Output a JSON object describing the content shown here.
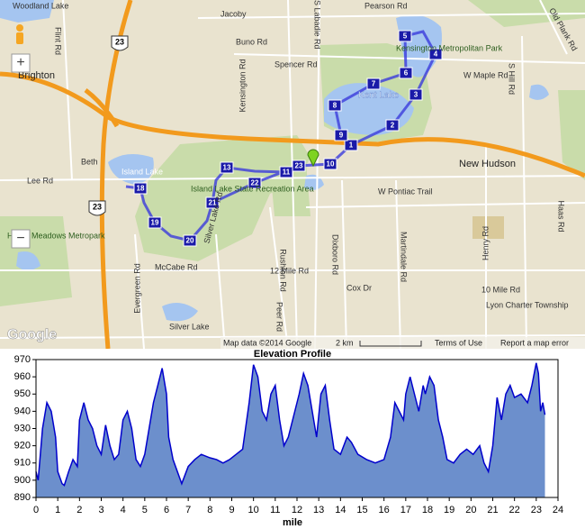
{
  "map": {
    "labels": [
      "Woodland Lake",
      "Jacoby",
      "Buno Rd",
      "Pearson Rd",
      "Kensington Metropolitan Park",
      "Spencer Rd",
      "W Maple Rd",
      "Kent Lake",
      "Brighton",
      "Kensington Rd",
      "New Hudson",
      "Lee Rd",
      "Island Lake",
      "Island Lake State Recreation Area",
      "W Pontiac Trail",
      "Huron Meadows Metropark",
      "McCabe Rd",
      "Silver Lake Rd",
      "12 Mile Rd",
      "Dixboro Rd",
      "Martindale Rd",
      "Lyon Charter Township",
      "Silver Lake",
      "Rushton Rd",
      "Peer Rd",
      "Evergreen Rd",
      "Beth",
      "Haas Rd",
      "S Hill Rd",
      "Old Plank Rd",
      "S Labadie Rd",
      "Henry Rd",
      "Cox Dr",
      "10 Mile Rd",
      "Flint Rd"
    ],
    "highways": [
      "23",
      "23"
    ],
    "markers": [
      "1",
      "2",
      "3",
      "4",
      "5",
      "6",
      "7",
      "8",
      "9",
      "10",
      "11",
      "13",
      "18",
      "19",
      "20",
      "21",
      "22",
      "23"
    ],
    "zoom_in": "+",
    "zoom_out": "−",
    "logo": "Google",
    "attribution": "Map data ©2014 Google",
    "scale": "2 km",
    "terms": "Terms of Use",
    "report": "Report a map error"
  },
  "chart_data": {
    "type": "area",
    "title": "Elevation Profile",
    "x_label": "mile",
    "x": [
      0,
      0.1,
      0.3,
      0.5,
      0.7,
      0.9,
      1.0,
      1.2,
      1.3,
      1.5,
      1.7,
      1.9,
      2.0,
      2.2,
      2.4,
      2.6,
      2.8,
      3.0,
      3.2,
      3.4,
      3.6,
      3.8,
      4.0,
      4.2,
      4.4,
      4.6,
      4.8,
      5.0,
      5.2,
      5.4,
      5.6,
      5.8,
      6.0,
      6.1,
      6.3,
      6.5,
      6.7,
      7.0,
      7.3,
      7.6,
      8.0,
      8.3,
      8.6,
      8.9,
      9.2,
      9.5,
      9.8,
      10.0,
      10.2,
      10.4,
      10.6,
      10.8,
      11.0,
      11.2,
      11.4,
      11.6,
      11.9,
      12.1,
      12.3,
      12.5,
      12.7,
      12.9,
      13.1,
      13.3,
      13.5,
      13.7,
      14.0,
      14.3,
      14.5,
      14.8,
      15.2,
      15.6,
      16.0,
      16.3,
      16.5,
      16.7,
      16.9,
      17.0,
      17.2,
      17.4,
      17.6,
      17.8,
      17.9,
      18.1,
      18.3,
      18.5,
      18.7,
      18.9,
      19.2,
      19.5,
      19.8,
      20.1,
      20.4,
      20.6,
      20.8,
      21.0,
      21.2,
      21.4,
      21.6,
      21.8,
      22.0,
      22.3,
      22.6,
      22.8,
      23.0,
      23.1,
      23.2,
      23.3,
      23.4
    ],
    "series": [
      {
        "name": "Elevation",
        "color": "#0000cc",
        "fill": "#6c8fcc",
        "values": [
          905,
          900,
          930,
          945,
          940,
          925,
          905,
          898,
          897,
          905,
          912,
          908,
          935,
          945,
          935,
          930,
          920,
          915,
          932,
          920,
          912,
          915,
          935,
          940,
          930,
          912,
          908,
          915,
          930,
          945,
          955,
          965,
          950,
          925,
          912,
          905,
          898,
          908,
          912,
          915,
          913,
          912,
          910,
          912,
          915,
          918,
          945,
          967,
          960,
          940,
          935,
          950,
          955,
          935,
          920,
          925,
          940,
          950,
          962,
          955,
          940,
          925,
          950,
          955,
          935,
          918,
          915,
          925,
          922,
          915,
          912,
          910,
          912,
          925,
          945,
          940,
          935,
          950,
          960,
          950,
          940,
          955,
          950,
          960,
          955,
          935,
          925,
          912,
          910,
          915,
          918,
          915,
          920,
          910,
          905,
          920,
          948,
          935,
          950,
          955,
          948,
          950,
          945,
          955,
          968,
          962,
          940,
          945,
          938
        ]
      }
    ],
    "xlim": [
      0,
      24
    ],
    "ylim": [
      890,
      970
    ],
    "xticks": [
      0,
      1,
      2,
      3,
      4,
      5,
      6,
      7,
      8,
      9,
      10,
      11,
      12,
      13,
      14,
      15,
      16,
      17,
      18,
      19,
      20,
      21,
      22,
      23,
      24
    ],
    "yticks": [
      890,
      900,
      910,
      920,
      930,
      940,
      950,
      960,
      970
    ],
    "grid": false
  }
}
